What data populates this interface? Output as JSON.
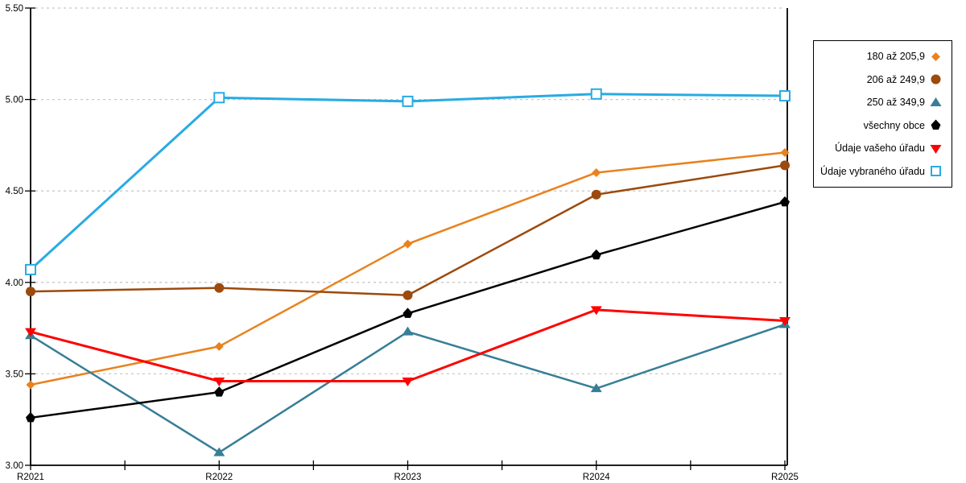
{
  "chart_data": {
    "type": "line",
    "title": "",
    "xlabel": "",
    "ylabel": "",
    "categories": [
      "R2021",
      "R2022",
      "R2023",
      "R2024",
      "R2025"
    ],
    "ylim": [
      3.0,
      5.5
    ],
    "ytick_step": 0.5,
    "ytick_labels": [
      "5.50",
      "5.00",
      "4.50",
      "4.00",
      "3.50",
      "3.00"
    ],
    "grid": "horizontal dashed gridlines at each 0.50 tick",
    "legend_position": "outside top-right, boxed, marker right of label",
    "axis_color": "#000000",
    "gridline_color": "#c8c8c8",
    "series": [
      {
        "name": "180 až 205,9",
        "marker": "diamond",
        "color": "#E8821E",
        "line_width": 2.5,
        "values": [
          3.44,
          3.65,
          4.21,
          4.6,
          4.71
        ]
      },
      {
        "name": "206 až 249,9",
        "marker": "circle",
        "color": "#9C4A0D",
        "line_width": 2.5,
        "values": [
          3.95,
          3.97,
          3.93,
          4.48,
          4.64
        ]
      },
      {
        "name": "250 až 349,9",
        "marker": "triangle-up",
        "color": "#377E96",
        "line_width": 2.5,
        "values": [
          3.71,
          3.07,
          3.73,
          3.42,
          3.77
        ]
      },
      {
        "name": "všechny obce",
        "marker": "pentagon",
        "color": "#000000",
        "line_width": 2.5,
        "values": [
          3.26,
          3.4,
          3.83,
          4.15,
          4.44
        ]
      },
      {
        "name": "Údaje vašeho úřadu",
        "marker": "triangle-down",
        "color": "#FF0000",
        "line_width": 3,
        "values": [
          3.73,
          3.46,
          3.46,
          3.85,
          3.79
        ]
      },
      {
        "name": "Údaje vybraného úřadu",
        "marker": "square-open",
        "color": "#29ABE2",
        "line_width": 3,
        "values": [
          4.07,
          5.01,
          4.99,
          5.03,
          5.02
        ]
      }
    ]
  }
}
